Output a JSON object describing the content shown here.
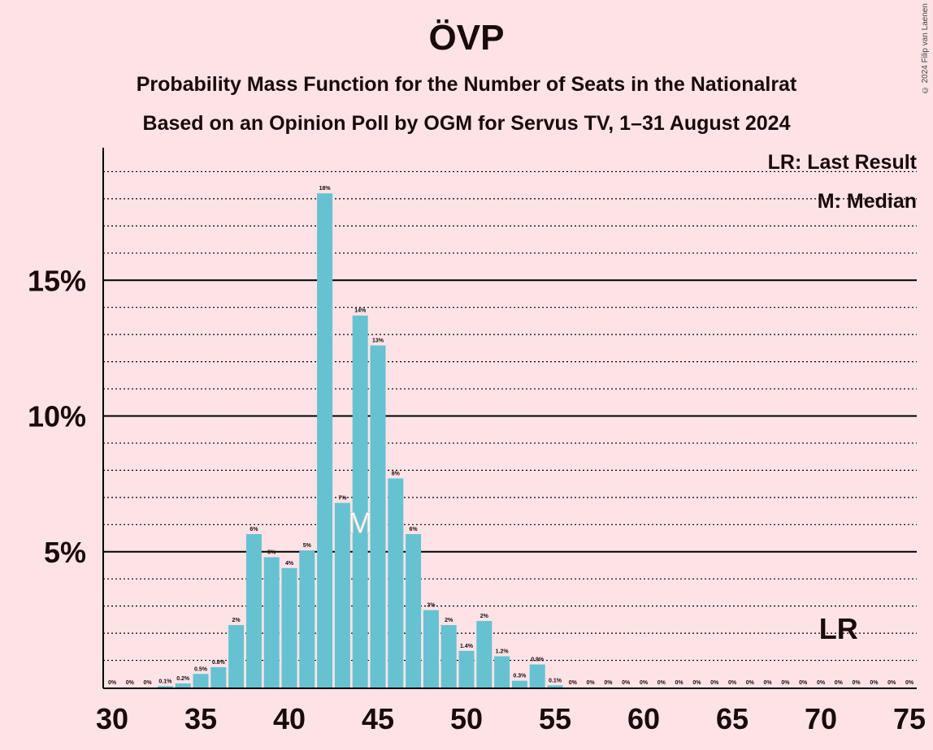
{
  "title": "ÖVP",
  "subtitle_1": "Probability Mass Function for the Number of Seats in the Nationalrat",
  "subtitle_2": "Based on an Opinion Poll by OGM for Servus TV, 1–31 August 2024",
  "copyright": "© 2024 Filip van Laenen",
  "legend": {
    "last_result": "LR: Last Result",
    "median": "M: Median"
  },
  "colors": {
    "bar": "#66c2d1",
    "background": "#fde3e6",
    "text": "#1a0a0c"
  },
  "chart_data": {
    "type": "bar",
    "x": [
      30,
      31,
      32,
      33,
      34,
      35,
      36,
      37,
      38,
      39,
      40,
      41,
      42,
      43,
      44,
      45,
      46,
      47,
      48,
      49,
      50,
      51,
      52,
      53,
      54,
      55,
      56,
      57,
      58,
      59,
      60,
      61,
      62,
      63,
      64,
      65,
      66,
      67,
      68,
      69,
      70,
      71,
      72,
      73,
      74,
      75
    ],
    "values": [
      0,
      0,
      0,
      0.05,
      0.15,
      0.5,
      0.75,
      2.3,
      5.65,
      4.8,
      4.4,
      5.05,
      18.2,
      6.8,
      13.7,
      12.6,
      7.7,
      5.65,
      2.85,
      2.3,
      1.35,
      2.45,
      1.15,
      0.25,
      0.85,
      0.08,
      0,
      0,
      0,
      0,
      0,
      0,
      0,
      0,
      0,
      0,
      0,
      0,
      0,
      0,
      0,
      0,
      0,
      0,
      0,
      0
    ],
    "labels": [
      "0%",
      "0%",
      "0%",
      "0.1%",
      "0.2%",
      "0.5%",
      "0.8%",
      "2%",
      "6%",
      "5%",
      "4%",
      "5%",
      "18%",
      "7%",
      "14%",
      "13%",
      "8%",
      "6%",
      "3%",
      "2%",
      "1.4%",
      "2%",
      "1.2%",
      "0.3%",
      "0.9%",
      "0.1%",
      "0%",
      "0%",
      "0%",
      "0%",
      "0%",
      "0%",
      "0%",
      "0%",
      "0%",
      "0%",
      "0%",
      "0%",
      "0%",
      "0%",
      "0%",
      "0%",
      "0%",
      "0%",
      "0%",
      "0%"
    ],
    "x_ticks": [
      "30",
      "35",
      "40",
      "45",
      "50",
      "55",
      "60",
      "65",
      "70",
      "75"
    ],
    "y_ticks": [
      "5%",
      "10%",
      "15%"
    ],
    "ylim": [
      0,
      20
    ],
    "median": 44,
    "median_marker": "M",
    "last_result": 71,
    "last_result_marker": "LR",
    "grid": true
  }
}
